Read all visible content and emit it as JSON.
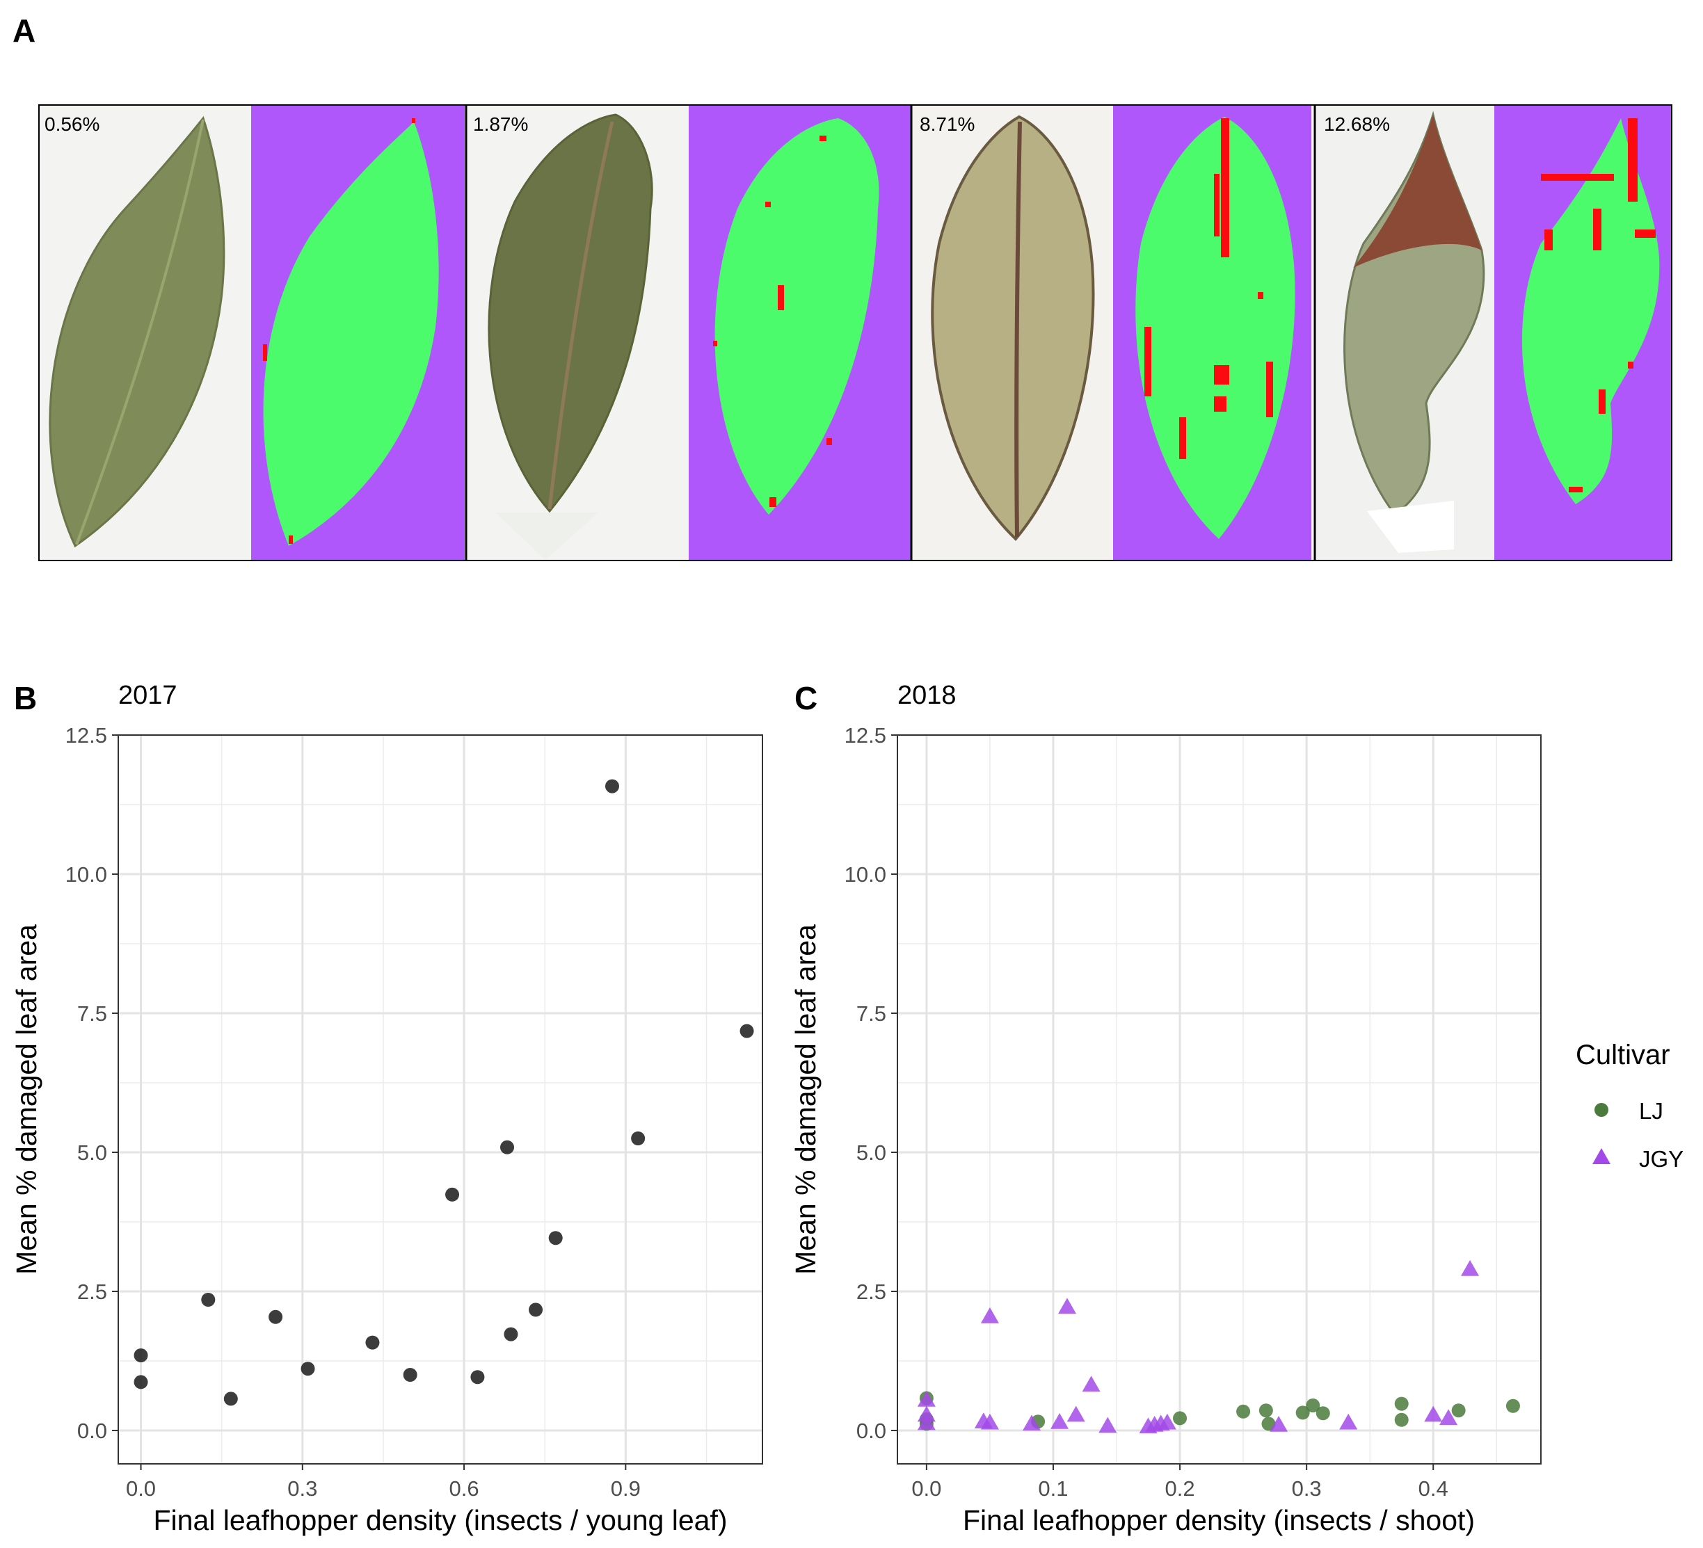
{
  "panel_a": {
    "label": "A",
    "leaves": [
      {
        "percent": "0.56%"
      },
      {
        "percent": "1.87%"
      },
      {
        "percent": "8.71%"
      },
      {
        "percent": "12.68%"
      }
    ],
    "colors": {
      "background_mask": "#b057fb",
      "healthy": "#4cfb6c",
      "damaged": "#fb0a10"
    }
  },
  "chart_data": [
    {
      "panel_label": "B",
      "type": "scatter",
      "title": "2017",
      "xlabel": "Final leafhopper density (insects / young leaf)",
      "ylabel": "Mean % damaged leaf area",
      "xlim": [
        -0.042,
        1.154
      ],
      "ylim": [
        -0.6,
        12.5
      ],
      "xticks": [
        0.0,
        0.3,
        0.6,
        0.9
      ],
      "xtick_labels": [
        "0.0",
        "0.3",
        "0.6",
        "0.9"
      ],
      "yticks": [
        0,
        2.5,
        5,
        7.5,
        10,
        12.5
      ],
      "ytick_labels": [
        "0.0",
        "2.5",
        "5.0",
        "7.5",
        "10.0",
        "12.5"
      ],
      "grid": true,
      "series": [
        {
          "color": "#1a1a1a",
          "marker": "circle",
          "points": [
            {
              "x": 0.0,
              "y": 1.35
            },
            {
              "x": 0.0,
              "y": 0.87
            },
            {
              "x": 0.125,
              "y": 2.35
            },
            {
              "x": 0.167,
              "y": 0.57
            },
            {
              "x": 0.25,
              "y": 2.04
            },
            {
              "x": 0.31,
              "y": 1.11
            },
            {
              "x": 0.43,
              "y": 1.58
            },
            {
              "x": 0.5,
              "y": 1.0
            },
            {
              "x": 0.578,
              "y": 4.24
            },
            {
              "x": 0.625,
              "y": 0.96
            },
            {
              "x": 0.68,
              "y": 5.09
            },
            {
              "x": 0.687,
              "y": 1.73
            },
            {
              "x": 0.733,
              "y": 2.17
            },
            {
              "x": 0.77,
              "y": 3.46
            },
            {
              "x": 0.875,
              "y": 11.58
            },
            {
              "x": 0.923,
              "y": 5.25
            },
            {
              "x": 1.125,
              "y": 7.18
            }
          ]
        }
      ]
    },
    {
      "panel_label": "C",
      "type": "scatter",
      "title": "2018",
      "xlabel": "Final leafhopper density (insects / shoot)",
      "ylabel": "Mean % damaged leaf area",
      "xlim": [
        -0.023,
        0.485
      ],
      "ylim": [
        -0.6,
        12.5
      ],
      "xticks": [
        0.0,
        0.1,
        0.2,
        0.3,
        0.4
      ],
      "xtick_labels": [
        "0.0",
        "0.1",
        "0.2",
        "0.3",
        "0.4"
      ],
      "yticks": [
        0,
        2.5,
        5,
        7.5,
        10,
        12.5
      ],
      "ytick_labels": [
        "0.0",
        "2.5",
        "5.0",
        "7.5",
        "10.0",
        "12.5"
      ],
      "grid": true,
      "legend": {
        "title": "Cultivar",
        "position": "right"
      },
      "series": [
        {
          "name": "LJ",
          "color": "#4a7a3c",
          "marker": "circle",
          "points": [
            {
              "x": 0.0,
              "y": 0.58
            },
            {
              "x": 0.0,
              "y": 0.2
            },
            {
              "x": 0.0,
              "y": 0.12
            },
            {
              "x": 0.088,
              "y": 0.16
            },
            {
              "x": 0.2,
              "y": 0.22
            },
            {
              "x": 0.25,
              "y": 0.34
            },
            {
              "x": 0.268,
              "y": 0.36
            },
            {
              "x": 0.27,
              "y": 0.12
            },
            {
              "x": 0.297,
              "y": 0.32
            },
            {
              "x": 0.305,
              "y": 0.45
            },
            {
              "x": 0.313,
              "y": 0.31
            },
            {
              "x": 0.375,
              "y": 0.48
            },
            {
              "x": 0.375,
              "y": 0.19
            },
            {
              "x": 0.42,
              "y": 0.36
            },
            {
              "x": 0.463,
              "y": 0.44
            }
          ]
        },
        {
          "name": "JGY",
          "color": "#a349e9",
          "marker": "triangle",
          "points": [
            {
              "x": 0.0,
              "y": 0.55
            },
            {
              "x": 0.0,
              "y": 0.28
            },
            {
              "x": 0.0,
              "y": 0.13
            },
            {
              "x": 0.045,
              "y": 0.16
            },
            {
              "x": 0.05,
              "y": 2.05
            },
            {
              "x": 0.05,
              "y": 0.14
            },
            {
              "x": 0.083,
              "y": 0.12
            },
            {
              "x": 0.105,
              "y": 0.15
            },
            {
              "x": 0.111,
              "y": 2.22
            },
            {
              "x": 0.118,
              "y": 0.28
            },
            {
              "x": 0.13,
              "y": 0.82
            },
            {
              "x": 0.143,
              "y": 0.08
            },
            {
              "x": 0.175,
              "y": 0.07
            },
            {
              "x": 0.18,
              "y": 0.1
            },
            {
              "x": 0.185,
              "y": 0.12
            },
            {
              "x": 0.19,
              "y": 0.14
            },
            {
              "x": 0.278,
              "y": 0.1
            },
            {
              "x": 0.333,
              "y": 0.14
            },
            {
              "x": 0.4,
              "y": 0.28
            },
            {
              "x": 0.412,
              "y": 0.22
            },
            {
              "x": 0.429,
              "y": 2.9
            }
          ]
        }
      ]
    }
  ]
}
